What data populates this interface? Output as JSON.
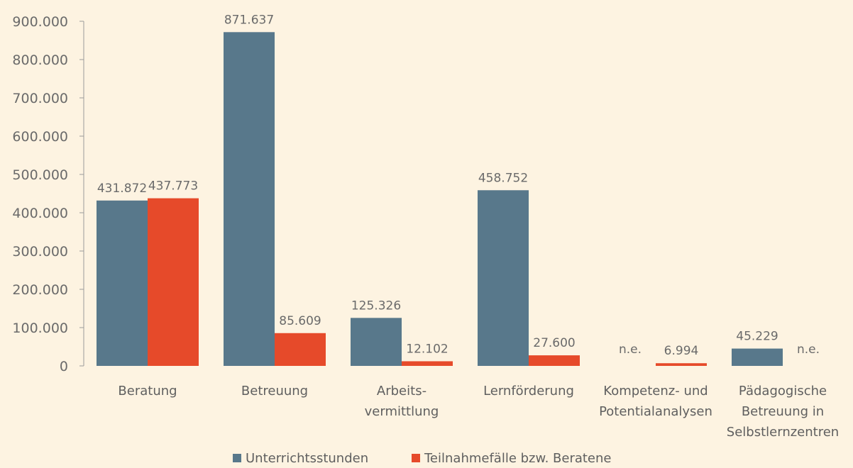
{
  "chart_data": {
    "type": "bar",
    "ylim": [
      0,
      900000
    ],
    "yticks": [
      0,
      100000,
      200000,
      300000,
      400000,
      500000,
      600000,
      700000,
      800000,
      900000
    ],
    "ytick_labels": [
      "0",
      "100.000",
      "200.000",
      "300.000",
      "400.000",
      "500.000",
      "600.000",
      "700.000",
      "800.000",
      "900.000"
    ],
    "categories": [
      "Beratung",
      "Betreuung",
      "Arbeits- vermittlung",
      "Lernförderung",
      "Kompetenz- und Potentialanalysen",
      "Pädagogische Betreuung in Selbstlernzentren"
    ],
    "category_lines": [
      [
        "Beratung"
      ],
      [
        "Betreuung"
      ],
      [
        "Arbeits-",
        "vermittlung"
      ],
      [
        "Lernförderung"
      ],
      [
        "Kompetenz- und",
        "Potentialanalysen"
      ],
      [
        "Pädagogische",
        "Betreuung in",
        "Selbstlernzentren"
      ]
    ],
    "series": [
      {
        "name": "Unterrichtsstunden",
        "color": "#58788b",
        "values": [
          431872,
          871637,
          125326,
          458752,
          null,
          45229
        ],
        "labels": [
          "431.872",
          "871.637",
          "125.326",
          "458.752",
          "n.e.",
          "45.229"
        ]
      },
      {
        "name": "Teilnahmefälle bzw. Beratene",
        "color": "#e64a2a",
        "values": [
          437773,
          85609,
          12102,
          27600,
          6994,
          null
        ],
        "labels": [
          "437.773",
          "85.609",
          "12.102",
          "27.600",
          "6.994",
          "n.e."
        ]
      }
    ],
    "legend_position": "bottom",
    "grid": false
  }
}
